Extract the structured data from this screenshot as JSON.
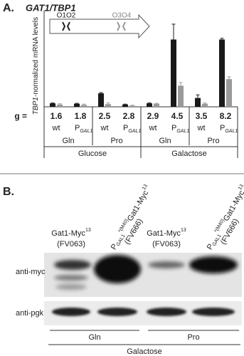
{
  "panels": [
    "A.",
    "B."
  ],
  "chart_data": {
    "type": "bar",
    "title": "GAT1/TBP1",
    "y_label": {
      "italic": "TBP1",
      "rest": "-normalized mRNA levels"
    },
    "gene_labels": [
      "O1O2",
      "O3O4"
    ],
    "ylim": [
      0,
      25
    ],
    "categories": [
      "wt",
      "P",
      "wt",
      "P",
      "wt",
      "P",
      "wt",
      "P"
    ],
    "category_subscripts": [
      null,
      "GAL1",
      null,
      "GAL1",
      null,
      "GAL1",
      null,
      "GAL1"
    ],
    "g_label": "g =",
    "g_values": [
      1.6,
      1.8,
      2.5,
      2.8,
      2.9,
      4.5,
      3.5,
      8.2
    ],
    "media": [
      "Gln",
      "Pro",
      "Gln",
      "Pro"
    ],
    "sugars": [
      "Glucose",
      "Galactose"
    ],
    "series": [
      {
        "color": "#1a1a1a",
        "values": [
          0.9,
          0.8,
          3.5,
          0.6,
          0.9,
          17.5,
          2.3,
          17.5
        ],
        "errors": [
          0.1,
          0.1,
          0.2,
          0.1,
          0.1,
          4,
          0.8,
          0.3
        ]
      },
      {
        "color": "#9a9a9a",
        "values": [
          0.6,
          0.5,
          0.7,
          0.3,
          0.8,
          5.5,
          0.8,
          7.2
        ],
        "errors": [
          0.2,
          0.2,
          0.3,
          0.1,
          0.1,
          0.8,
          0.2,
          0.6
        ]
      }
    ]
  },
  "blot": {
    "lanes": [
      {
        "name": "Gat1-Myc",
        "sup": "13",
        "strain": "(FV063)"
      },
      {
        "p": "P",
        "p_sub": "GAL1",
        "p_sup": "*(M40)",
        "name": "Gat1-Myc",
        "sup": "13",
        "strain": "(FV666)"
      },
      {
        "name": "Gat1-Myc",
        "sup": "13",
        "strain": "(FV063)"
      },
      {
        "p": "P",
        "p_sub": "GAL1",
        "p_sup": "*(M40)",
        "name": "Gat1-Myc",
        "sup": "13",
        "strain": "(FV666)"
      }
    ],
    "rows": [
      "anti-myc",
      "anti-pgk"
    ],
    "media": [
      "Gln",
      "Pro"
    ],
    "sugar": "Galactose"
  }
}
